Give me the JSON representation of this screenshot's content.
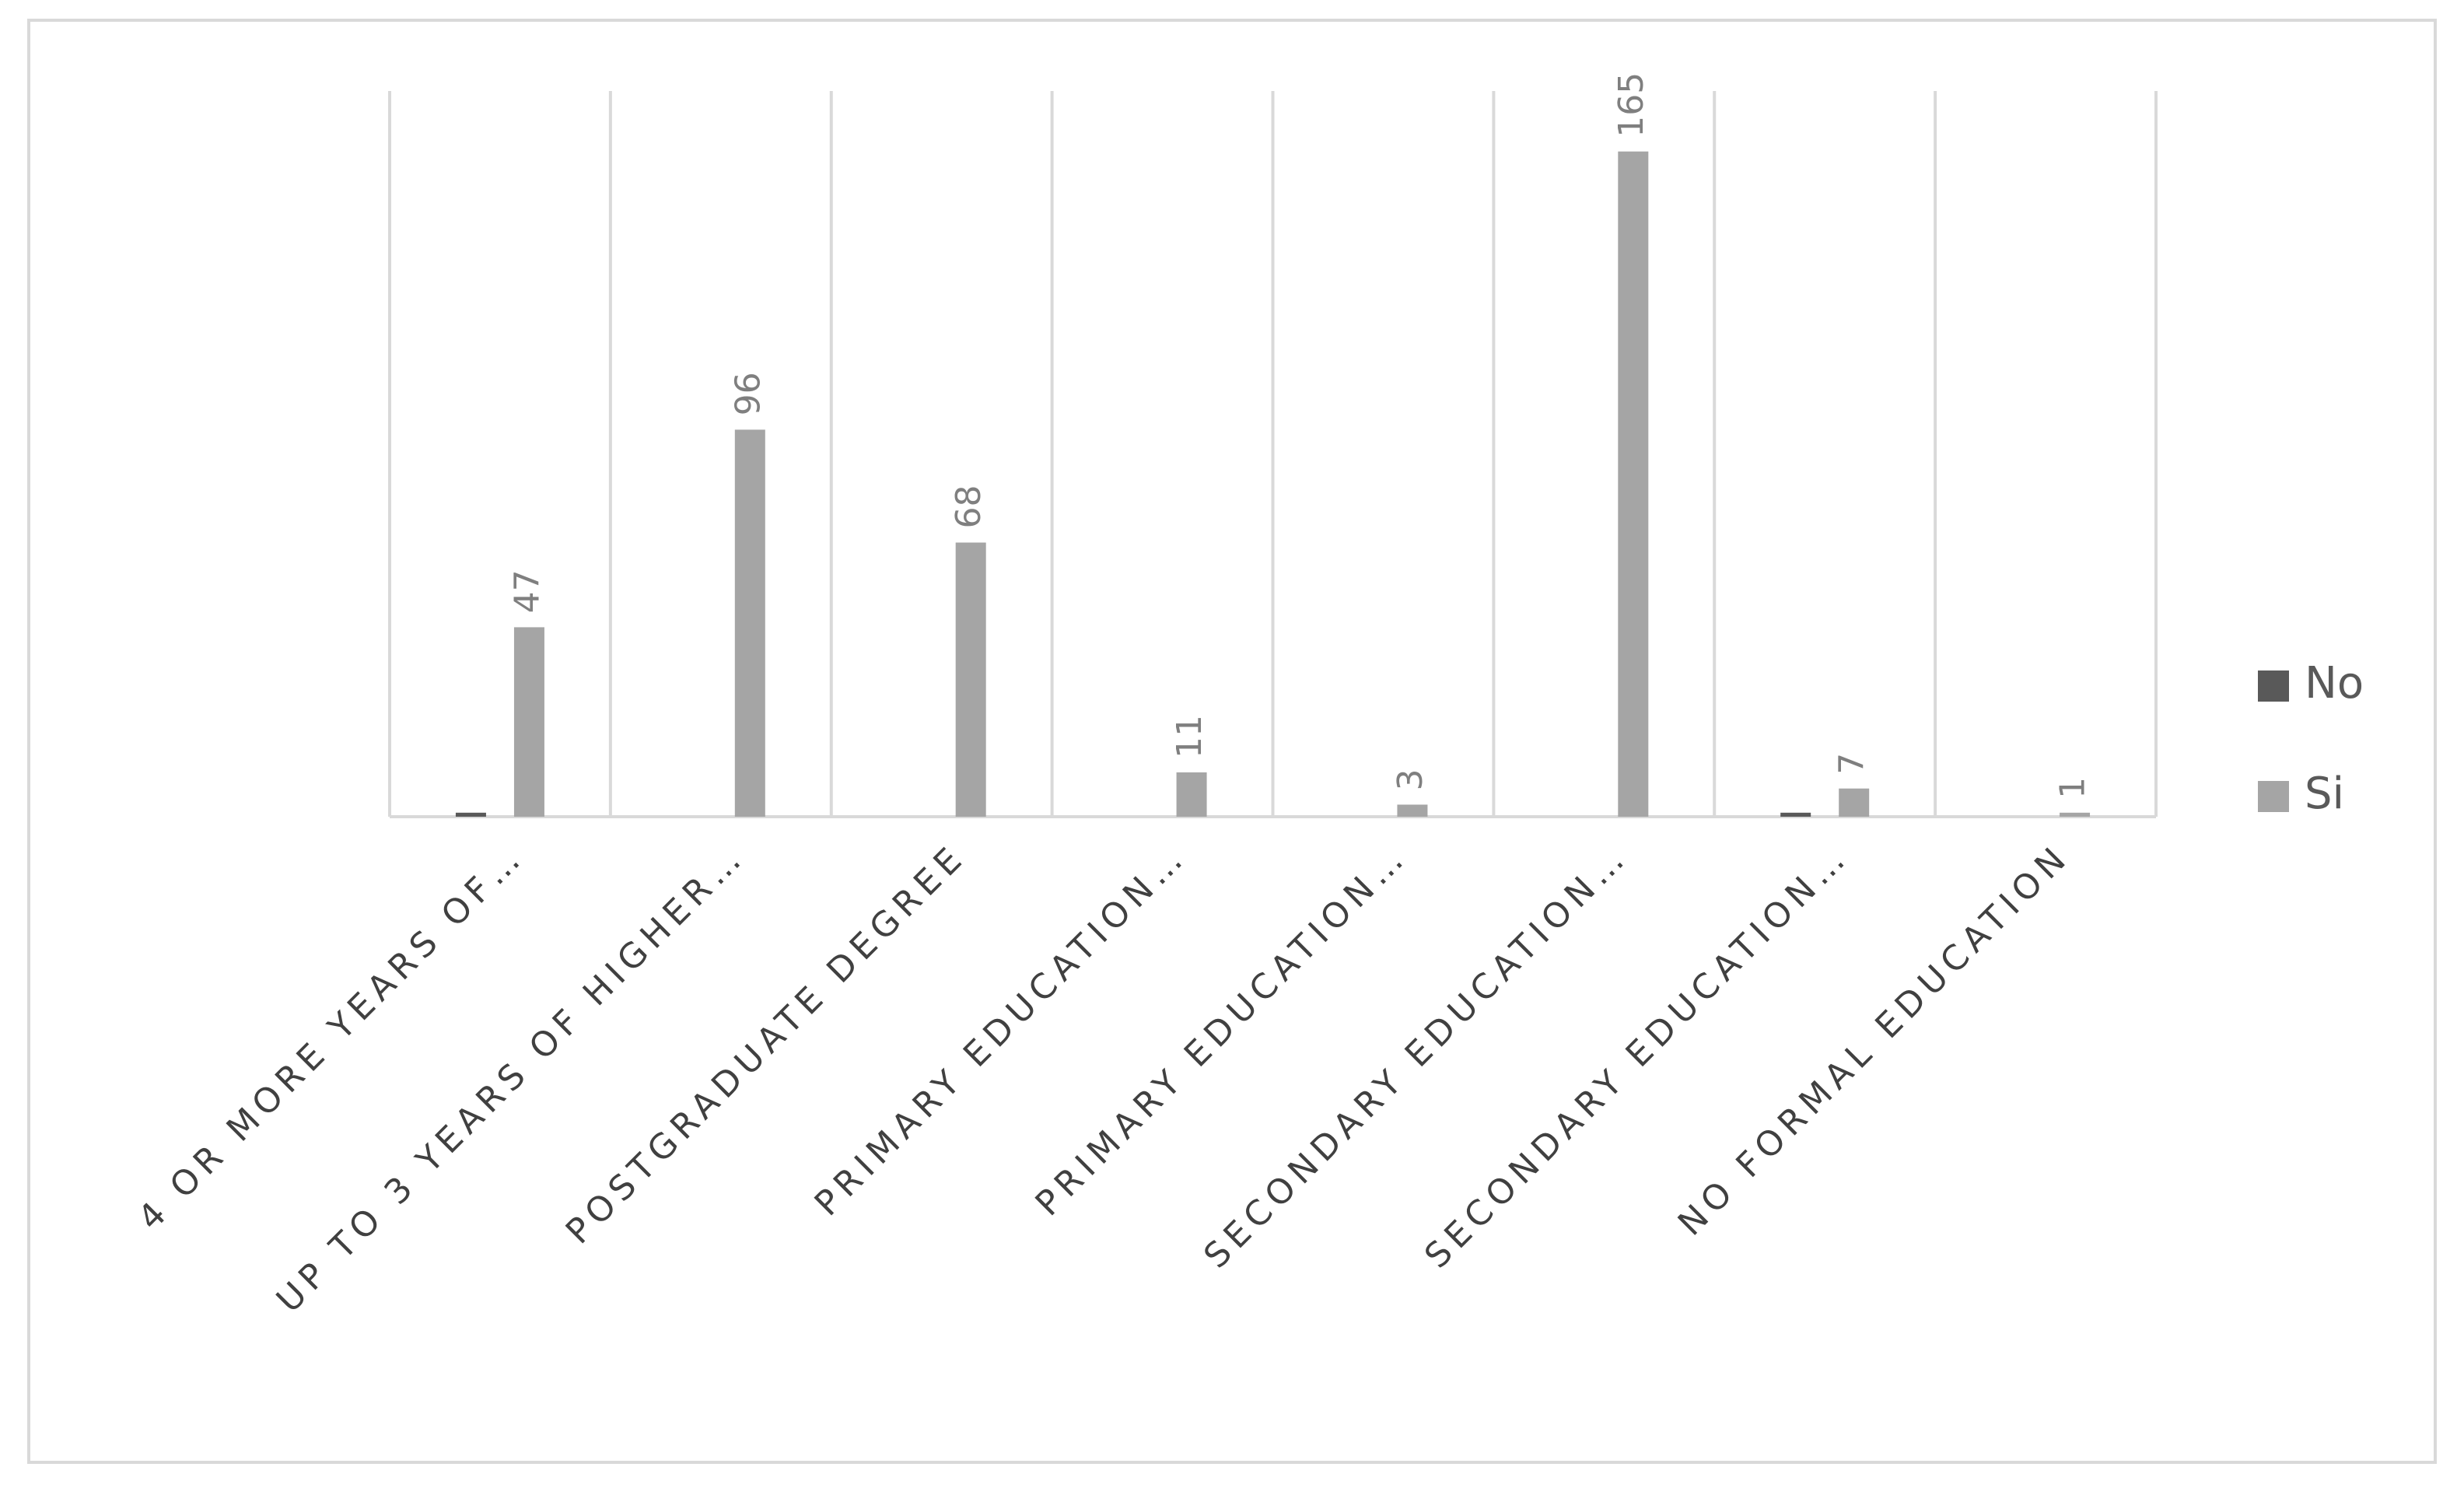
{
  "chart_data": {
    "type": "bar",
    "categories": [
      "4 OR MORE YEARS OF…",
      "UP TO 3 YEARS OF HIGHER…",
      "POSTGRADUATE DEGREE",
      "PRIMARY EDUCATION…",
      "PRIMARY EDUCATION…",
      "SECONDARY EDUCATION…",
      "SECONDARY EDUCATION…",
      "NO FORMAL EDUCATION"
    ],
    "series": [
      {
        "name": "No",
        "color": "#595959",
        "values": [
          1,
          null,
          null,
          null,
          null,
          null,
          1,
          null
        ]
      },
      {
        "name": "Si",
        "color": "#a5a5a5",
        "values": [
          47,
          96,
          68,
          11,
          3,
          165,
          7,
          1
        ]
      }
    ],
    "ylim": [
      0,
      180
    ],
    "legend": "right"
  }
}
